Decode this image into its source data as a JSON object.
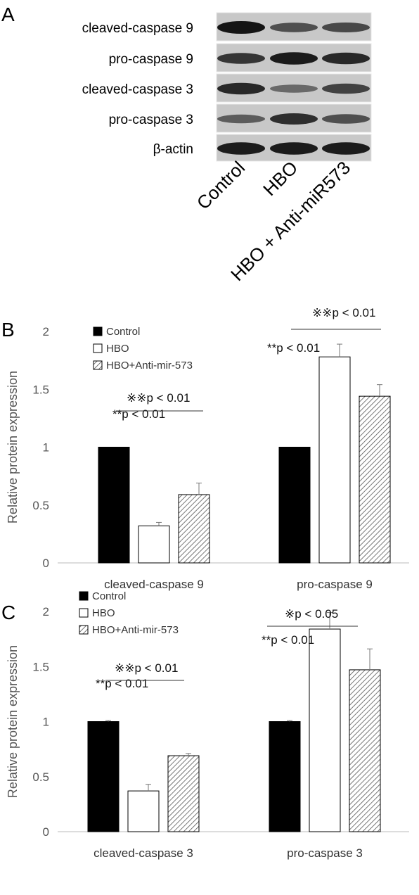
{
  "panel_a": {
    "letter": "A",
    "row_labels": [
      "cleaved-caspase 9",
      "pro-caspase 9",
      "cleaved-caspase 3",
      "pro-caspase 3",
      "β-actin"
    ],
    "lane_labels": [
      "Control",
      "HBO",
      "HBO + Anti-miR573"
    ],
    "band_intensity": [
      [
        1.0,
        0.55,
        0.6
      ],
      [
        0.75,
        0.95,
        0.85
      ],
      [
        0.85,
        0.35,
        0.65
      ],
      [
        0.45,
        0.8,
        0.55
      ],
      [
        0.95,
        0.95,
        0.95
      ]
    ]
  },
  "chart_data": [
    {
      "panel": "B",
      "type": "bar",
      "ylabel": "Relative protein expression",
      "ylim": [
        0,
        2
      ],
      "yticks": [
        "0",
        "0.5",
        "1",
        "1.5",
        "2"
      ],
      "categories": [
        "cleaved-caspase 9",
        "pro-caspase 9"
      ],
      "series": [
        {
          "name": "Control",
          "values": [
            1.0,
            1.0
          ],
          "errors": [
            0,
            0
          ],
          "color": "#000000",
          "pattern": "solid"
        },
        {
          "name": "HBO",
          "values": [
            0.32,
            1.78
          ],
          "errors": [
            0.03,
            0.11
          ],
          "color": "#ffffff",
          "pattern": "open"
        },
        {
          "name": "HBO+Anti-mir-573",
          "values": [
            0.59,
            1.44
          ],
          "errors": [
            0.1,
            0.1
          ],
          "color": "#bbbbbb",
          "pattern": "hatch"
        }
      ],
      "legend": "top-left",
      "annotations": [
        {
          "text": "**p < 0.01",
          "category": 0
        },
        {
          "text": "※※p < 0.01",
          "category": 0
        },
        {
          "text": "**p < 0.01",
          "category": 1
        },
        {
          "text": "※※p < 0.01",
          "category": 1
        }
      ]
    },
    {
      "panel": "C",
      "type": "bar",
      "ylabel": "Relative protein expression",
      "ylim": [
        0,
        2
      ],
      "yticks": [
        "0",
        "0.5",
        "1",
        "1.5",
        "2"
      ],
      "categories": [
        "cleaved-caspase 3",
        "pro-caspase 3"
      ],
      "series": [
        {
          "name": "Control",
          "values": [
            1.0,
            1.0
          ],
          "errors": [
            0.01,
            0.01
          ],
          "color": "#000000",
          "pattern": "solid"
        },
        {
          "name": "HBO",
          "values": [
            0.37,
            1.84
          ],
          "errors": [
            0.06,
            0.15
          ],
          "color": "#ffffff",
          "pattern": "open"
        },
        {
          "name": "HBO+Anti-mir-573",
          "values": [
            0.69,
            1.47
          ],
          "errors": [
            0.02,
            0.19
          ],
          "color": "#bbbbbb",
          "pattern": "hatch"
        }
      ],
      "legend": "top-left",
      "annotations": [
        {
          "text": "**p < 0.01",
          "category": 0
        },
        {
          "text": "※※p < 0.01",
          "category": 0
        },
        {
          "text": "**p < 0.01",
          "category": 1
        },
        {
          "text": "※p < 0.05",
          "category": 1
        }
      ]
    }
  ]
}
